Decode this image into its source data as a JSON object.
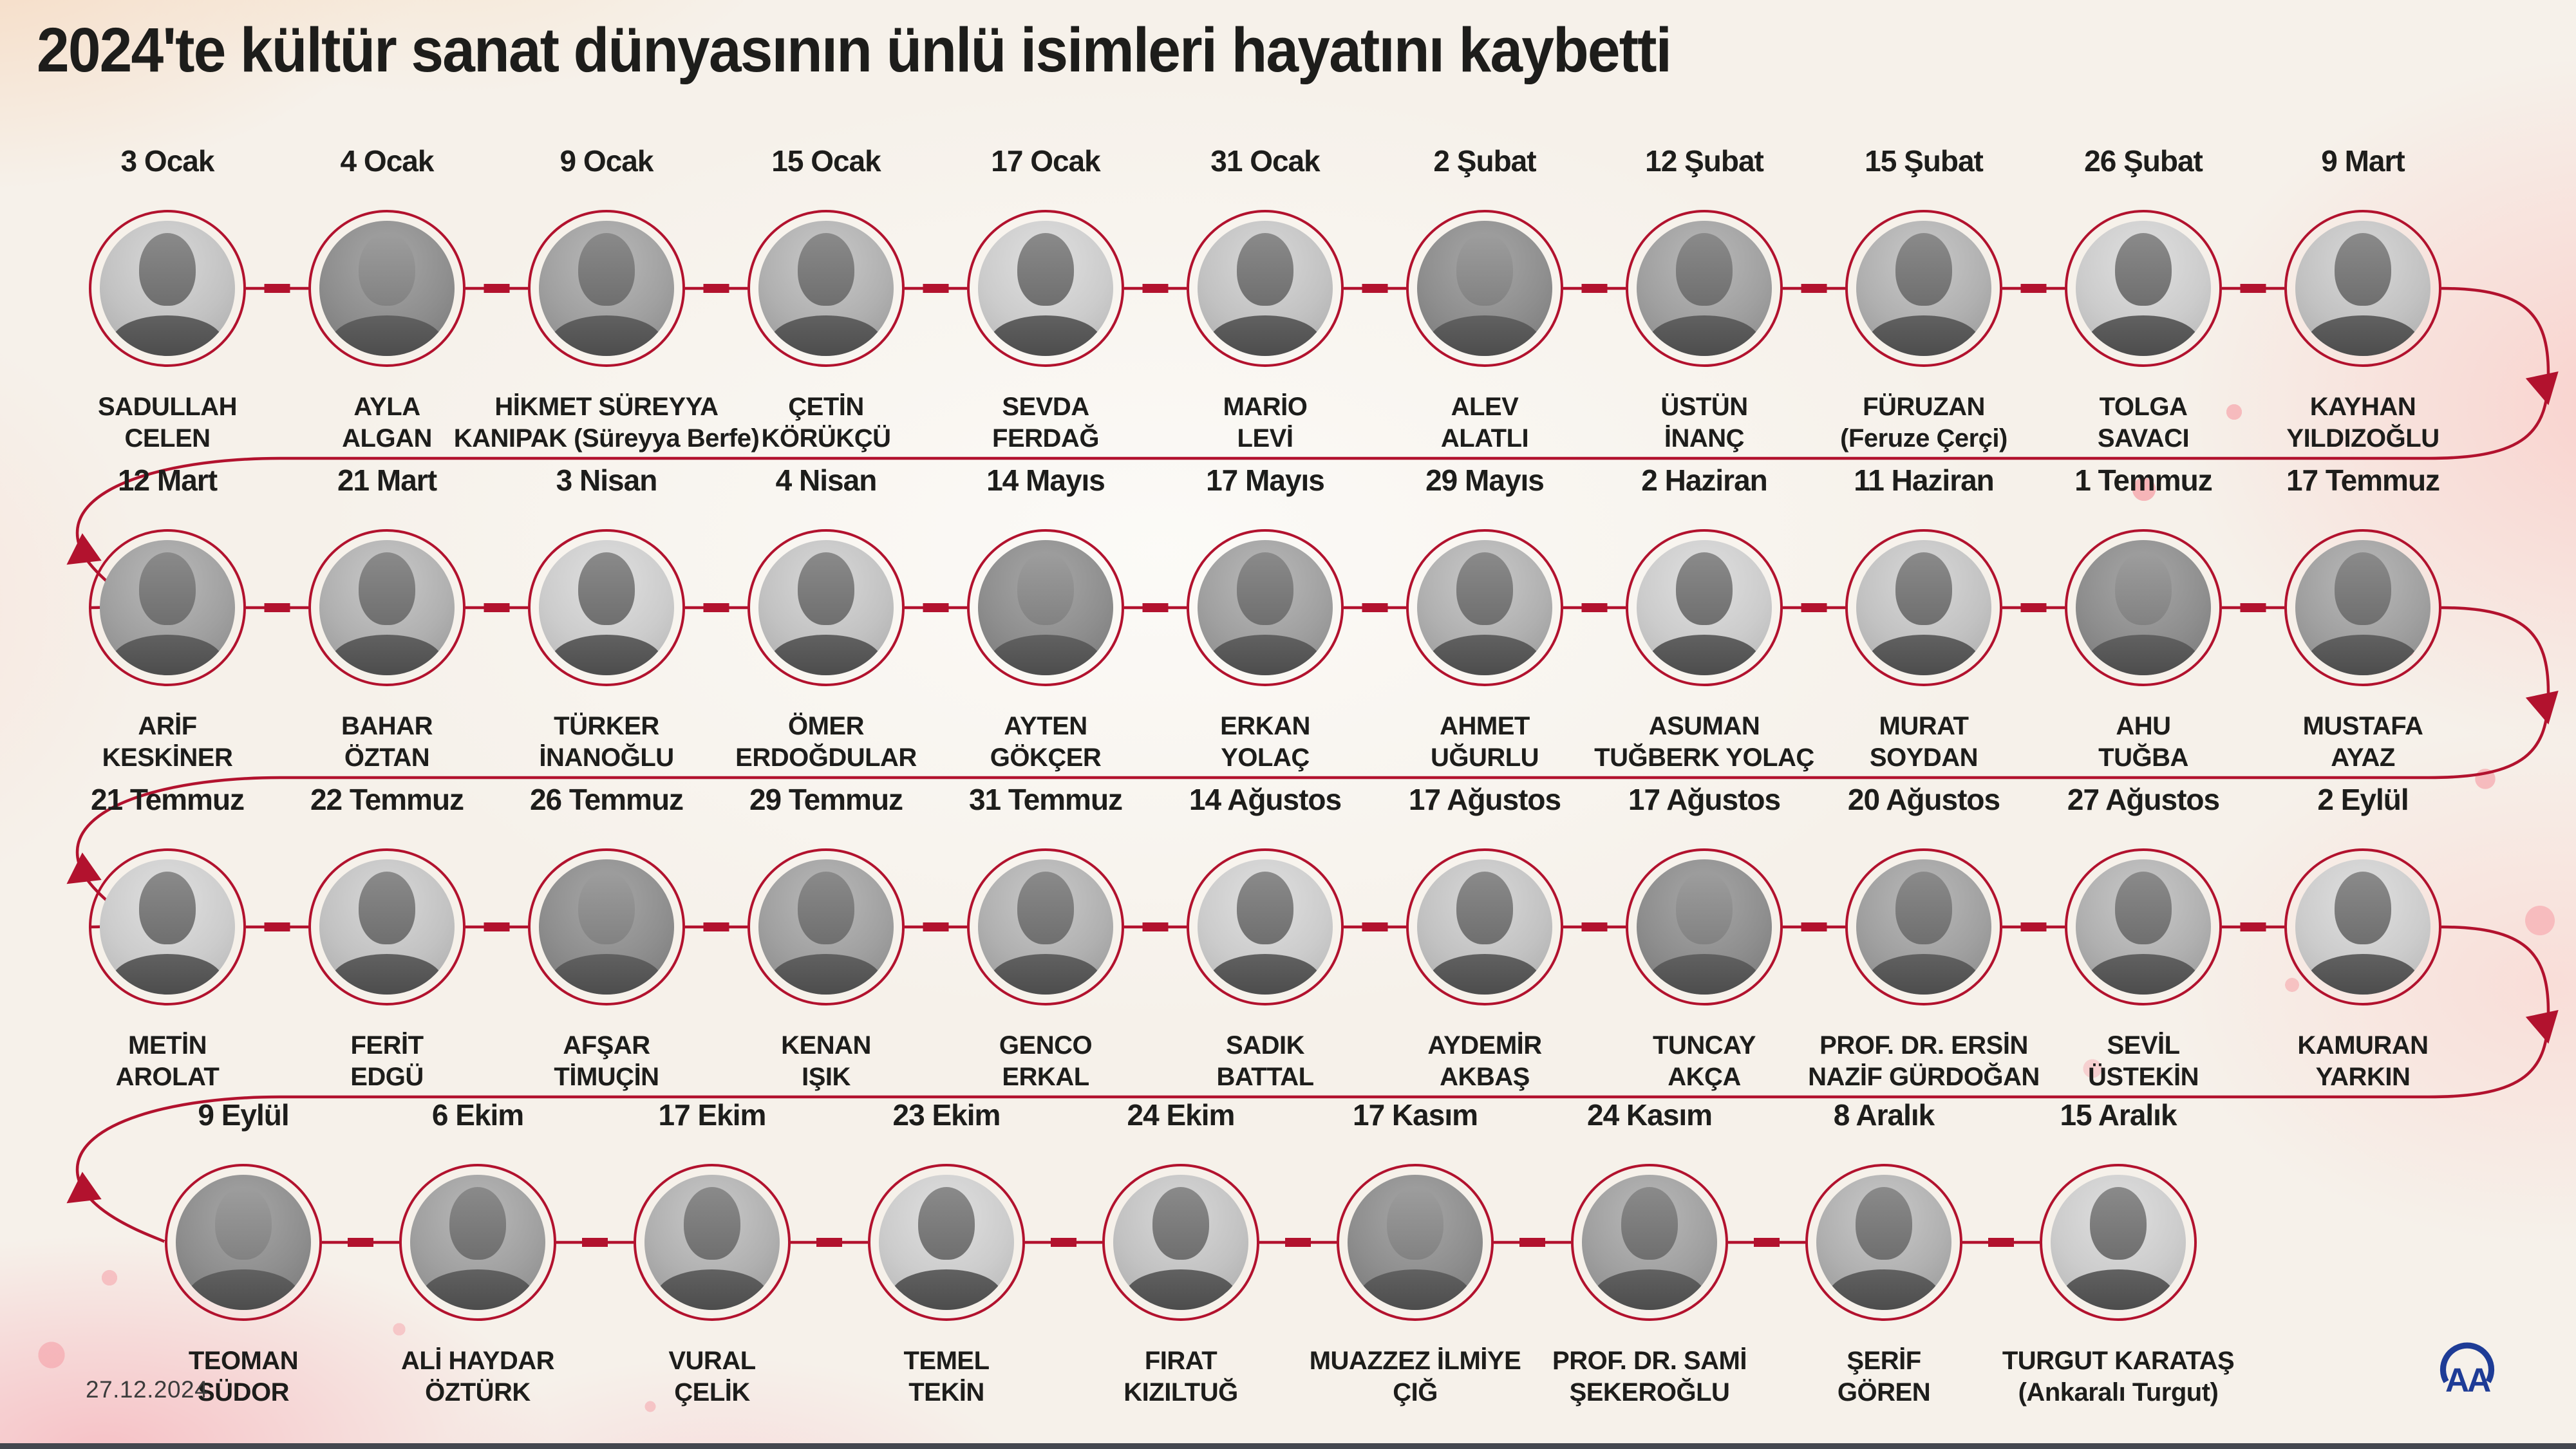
{
  "title": "2024'te kültür sanat dünyasının ünlü isimleri hayatını kaybetti",
  "footer": {
    "date": "27.12.2024",
    "logo_text": "AA"
  },
  "colors": {
    "accent": "#b2122e",
    "text": "#1d1d1b",
    "logo_blue": "#1e3c96",
    "bottom_bar": "#44474f",
    "background_base": "#f6f1ea"
  },
  "rows": [
    {
      "entries": [
        {
          "date": "3 Ocak",
          "name": "SADULLAH\nCELEN"
        },
        {
          "date": "4 Ocak",
          "name": "AYLA\nALGAN"
        },
        {
          "date": "9 Ocak",
          "name": "HİKMET SÜREYYA\nKANIPAK (Süreyya Berfe)"
        },
        {
          "date": "15 Ocak",
          "name": "ÇETİN\nKÖRÜKÇÜ"
        },
        {
          "date": "17 Ocak",
          "name": "SEVDA\nFERDAĞ"
        },
        {
          "date": "31 Ocak",
          "name": "MARİO\nLEVİ"
        },
        {
          "date": "2 Şubat",
          "name": "ALEV\nALATLI"
        },
        {
          "date": "12 Şubat",
          "name": "ÜSTÜN\nİNANÇ"
        },
        {
          "date": "15 Şubat",
          "name": "FÜRUZAN\n(Feruze Çerçi)"
        },
        {
          "date": "26 Şubat",
          "name": "TOLGA\nSAVACI"
        },
        {
          "date": "9 Mart",
          "name": "KAYHAN\nYILDIZOĞLU"
        }
      ]
    },
    {
      "entries": [
        {
          "date": "12 Mart",
          "name": "ARİF\nKESKİNER"
        },
        {
          "date": "21 Mart",
          "name": "BAHAR\nÖZTAN"
        },
        {
          "date": "3 Nisan",
          "name": "TÜRKER\nİNANOĞLU"
        },
        {
          "date": "4 Nisan",
          "name": "ÖMER\nERDOĞDULAR"
        },
        {
          "date": "14 Mayıs",
          "name": "AYTEN\nGÖKÇER"
        },
        {
          "date": "17 Mayıs",
          "name": "ERKAN\nYOLAÇ"
        },
        {
          "date": "29 Mayıs",
          "name": "AHMET\nUĞURLU"
        },
        {
          "date": "2 Haziran",
          "name": "ASUMAN\nTUĞBERK YOLAÇ"
        },
        {
          "date": "11 Haziran",
          "name": "MURAT\nSOYDAN"
        },
        {
          "date": "1 Temmuz",
          "name": "AHU\nTUĞBA"
        },
        {
          "date": "17 Temmuz",
          "name": "MUSTAFA\nAYAZ"
        }
      ]
    },
    {
      "entries": [
        {
          "date": "21 Temmuz",
          "name": "METİN\nAROLAT"
        },
        {
          "date": "22 Temmuz",
          "name": "FERİT\nEDGÜ"
        },
        {
          "date": "26 Temmuz",
          "name": "AFŞAR\nTİMUÇİN"
        },
        {
          "date": "29 Temmuz",
          "name": "KENAN\nIŞIK"
        },
        {
          "date": "31 Temmuz",
          "name": "GENCO\nERKAL"
        },
        {
          "date": "14 Ağustos",
          "name": "SADIK\nBATTAL"
        },
        {
          "date": "17 Ağustos",
          "name": "AYDEMİR\nAKBAŞ"
        },
        {
          "date": "17 Ağustos",
          "name": "TUNCAY\nAKÇA"
        },
        {
          "date": "20 Ağustos",
          "name": "PROF. DR. ERSİN\nNAZİF GÜRDOĞAN"
        },
        {
          "date": "27 Ağustos",
          "name": "SEVİL\nÜSTEKİN"
        },
        {
          "date": "2 Eylül",
          "name": "KAMURAN\nYARKIN"
        }
      ]
    },
    {
      "entries": [
        {
          "date": "9 Eylül",
          "name": "TEOMAN\nSÜDOR"
        },
        {
          "date": "6 Ekim",
          "name": "ALİ HAYDAR\nÖZTÜRK"
        },
        {
          "date": "17 Ekim",
          "name": "VURAL\nÇELİK"
        },
        {
          "date": "23 Ekim",
          "name": "TEMEL\nTEKİN"
        },
        {
          "date": "24 Ekim",
          "name": "FIRAT\nKIZILTUĞ"
        },
        {
          "date": "17 Kasım",
          "name": "MUAZZEZ İLMİYE\nÇIĞ"
        },
        {
          "date": "24 Kasım",
          "name": "PROF. DR. SAMİ\nŞEKEROĞLU"
        },
        {
          "date": "8 Aralık",
          "name": "ŞERİF\nGÖREN"
        },
        {
          "date": "15 Aralık",
          "name": "TURGUT KARATAŞ\n(Ankaralı Turgut)"
        }
      ]
    }
  ]
}
